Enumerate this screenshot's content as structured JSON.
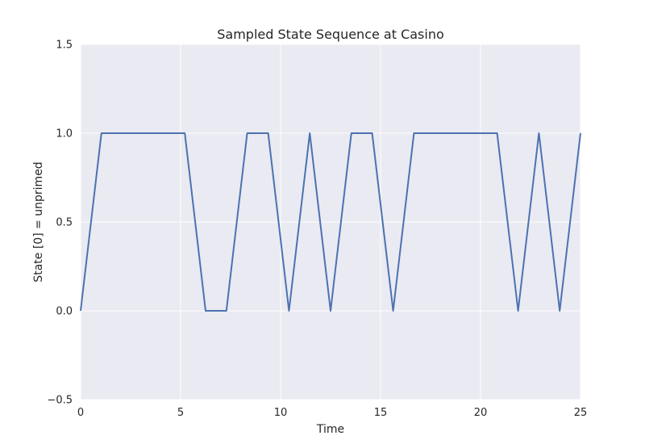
{
  "chart_data": {
    "type": "line",
    "title": "Sampled State Sequence at Casino",
    "xlabel": "Time",
    "ylabel": "State [0] = unprimed",
    "xlim": [
      0,
      25
    ],
    "ylim": [
      -0.5,
      1.5
    ],
    "xticks": [
      0,
      5,
      10,
      15,
      20,
      25
    ],
    "yticks": [
      -0.5,
      0.0,
      0.5,
      1.0,
      1.5
    ],
    "xtick_labels": [
      "0",
      "5",
      "10",
      "15",
      "20",
      "25"
    ],
    "ytick_labels": [
      "−0.5",
      "0.0",
      "0.5",
      "1.0",
      "1.5"
    ],
    "grid": true,
    "colors": {
      "background": "#eaeaf2",
      "grid": "#ffffff",
      "line": "#4c72b0"
    },
    "series": [
      {
        "x": [
          0,
          1.04,
          2.08,
          3.13,
          4.17,
          5.21,
          6.25,
          7.29,
          8.33,
          9.38,
          10.42,
          11.46,
          12.5,
          13.54,
          14.58,
          15.63,
          16.67,
          17.71,
          18.75,
          19.79,
          20.83,
          21.88,
          22.92,
          23.96,
          25
        ],
        "values": [
          0,
          1,
          1,
          1,
          1,
          1,
          0,
          0,
          1,
          1,
          0,
          1,
          0,
          1,
          1,
          0,
          1,
          1,
          1,
          1,
          1,
          0,
          1,
          0,
          1
        ]
      }
    ]
  }
}
